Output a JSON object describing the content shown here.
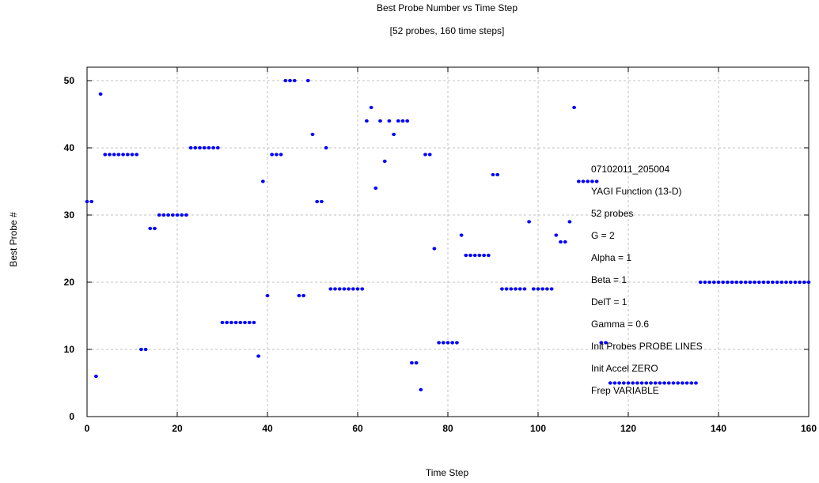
{
  "chart_data": {
    "type": "scatter",
    "title": "Best Probe Number vs Time Step",
    "subtitle": "[52 probes, 160 time steps]",
    "xlabel": "Time Step",
    "ylabel": "Best Probe #",
    "xlim": [
      0,
      160
    ],
    "ylim": [
      0,
      52
    ],
    "xticks": [
      0,
      20,
      40,
      60,
      80,
      100,
      120,
      140,
      160
    ],
    "yticks": [
      0,
      10,
      20,
      30,
      40,
      50
    ],
    "grid": true,
    "marker_color": "#0000ff",
    "annotations": [
      "07102011_205004",
      "YAGI Function (13-D)",
      "52 probes",
      "G = 2",
      "Alpha = 1",
      "Beta = 1",
      "DelT = 1",
      "Gamma = 0.6",
      "Init Probes PROBE LINES",
      "Init Accel ZERO",
      "Frep VARIABLE"
    ],
    "points": [
      [
        0,
        32
      ],
      [
        1,
        32
      ],
      [
        2,
        6
      ],
      [
        3,
        48
      ],
      [
        4,
        39
      ],
      [
        5,
        39
      ],
      [
        6,
        39
      ],
      [
        7,
        39
      ],
      [
        8,
        39
      ],
      [
        9,
        39
      ],
      [
        10,
        39
      ],
      [
        11,
        39
      ],
      [
        12,
        10
      ],
      [
        13,
        10
      ],
      [
        14,
        28
      ],
      [
        15,
        28
      ],
      [
        16,
        30
      ],
      [
        17,
        30
      ],
      [
        18,
        30
      ],
      [
        19,
        30
      ],
      [
        20,
        30
      ],
      [
        21,
        30
      ],
      [
        22,
        30
      ],
      [
        23,
        40
      ],
      [
        24,
        40
      ],
      [
        25,
        40
      ],
      [
        26,
        40
      ],
      [
        27,
        40
      ],
      [
        28,
        40
      ],
      [
        29,
        40
      ],
      [
        30,
        14
      ],
      [
        31,
        14
      ],
      [
        32,
        14
      ],
      [
        33,
        14
      ],
      [
        34,
        14
      ],
      [
        35,
        14
      ],
      [
        36,
        14
      ],
      [
        37,
        14
      ],
      [
        38,
        9
      ],
      [
        39,
        35
      ],
      [
        40,
        18
      ],
      [
        41,
        39
      ],
      [
        42,
        39
      ],
      [
        43,
        39
      ],
      [
        44,
        50
      ],
      [
        45,
        50
      ],
      [
        46,
        50
      ],
      [
        47,
        18
      ],
      [
        48,
        18
      ],
      [
        49,
        50
      ],
      [
        50,
        42
      ],
      [
        51,
        32
      ],
      [
        52,
        32
      ],
      [
        53,
        40
      ],
      [
        54,
        19
      ],
      [
        55,
        19
      ],
      [
        56,
        19
      ],
      [
        57,
        19
      ],
      [
        58,
        19
      ],
      [
        59,
        19
      ],
      [
        60,
        19
      ],
      [
        61,
        19
      ],
      [
        62,
        44
      ],
      [
        63,
        46
      ],
      [
        64,
        34
      ],
      [
        65,
        44
      ],
      [
        66,
        38
      ],
      [
        67,
        44
      ],
      [
        68,
        42
      ],
      [
        69,
        44
      ],
      [
        70,
        44
      ],
      [
        71,
        44
      ],
      [
        72,
        8
      ],
      [
        73,
        8
      ],
      [
        74,
        4
      ],
      [
        75,
        39
      ],
      [
        76,
        39
      ],
      [
        77,
        25
      ],
      [
        78,
        11
      ],
      [
        79,
        11
      ],
      [
        80,
        11
      ],
      [
        81,
        11
      ],
      [
        82,
        11
      ],
      [
        83,
        27
      ],
      [
        84,
        24
      ],
      [
        85,
        24
      ],
      [
        86,
        24
      ],
      [
        87,
        24
      ],
      [
        88,
        24
      ],
      [
        89,
        24
      ],
      [
        90,
        36
      ],
      [
        91,
        36
      ],
      [
        92,
        19
      ],
      [
        93,
        19
      ],
      [
        94,
        19
      ],
      [
        95,
        19
      ],
      [
        96,
        19
      ],
      [
        97,
        19
      ],
      [
        98,
        29
      ],
      [
        99,
        19
      ],
      [
        100,
        19
      ],
      [
        101,
        19
      ],
      [
        102,
        19
      ],
      [
        103,
        19
      ],
      [
        104,
        27
      ],
      [
        105,
        26
      ],
      [
        106,
        26
      ],
      [
        107,
        29
      ],
      [
        108,
        46
      ],
      [
        109,
        35
      ],
      [
        110,
        35
      ],
      [
        111,
        35
      ],
      [
        112,
        35
      ],
      [
        113,
        35
      ],
      [
        114,
        11
      ],
      [
        115,
        11
      ],
      [
        116,
        5
      ],
      [
        117,
        5
      ],
      [
        118,
        5
      ],
      [
        119,
        5
      ],
      [
        120,
        5
      ],
      [
        121,
        5
      ],
      [
        122,
        5
      ],
      [
        123,
        5
      ],
      [
        124,
        5
      ],
      [
        125,
        5
      ],
      [
        126,
        5
      ],
      [
        127,
        5
      ],
      [
        128,
        5
      ],
      [
        129,
        5
      ],
      [
        130,
        5
      ],
      [
        131,
        5
      ],
      [
        132,
        5
      ],
      [
        133,
        5
      ],
      [
        134,
        5
      ],
      [
        135,
        5
      ],
      [
        136,
        20
      ],
      [
        137,
        20
      ],
      [
        138,
        20
      ],
      [
        139,
        20
      ],
      [
        140,
        20
      ],
      [
        141,
        20
      ],
      [
        142,
        20
      ],
      [
        143,
        20
      ],
      [
        144,
        20
      ],
      [
        145,
        20
      ],
      [
        146,
        20
      ],
      [
        147,
        20
      ],
      [
        148,
        20
      ],
      [
        149,
        20
      ],
      [
        150,
        20
      ],
      [
        151,
        20
      ],
      [
        152,
        20
      ],
      [
        153,
        20
      ],
      [
        154,
        20
      ],
      [
        155,
        20
      ],
      [
        156,
        20
      ],
      [
        157,
        20
      ],
      [
        158,
        20
      ],
      [
        159,
        20
      ],
      [
        160,
        20
      ]
    ]
  }
}
